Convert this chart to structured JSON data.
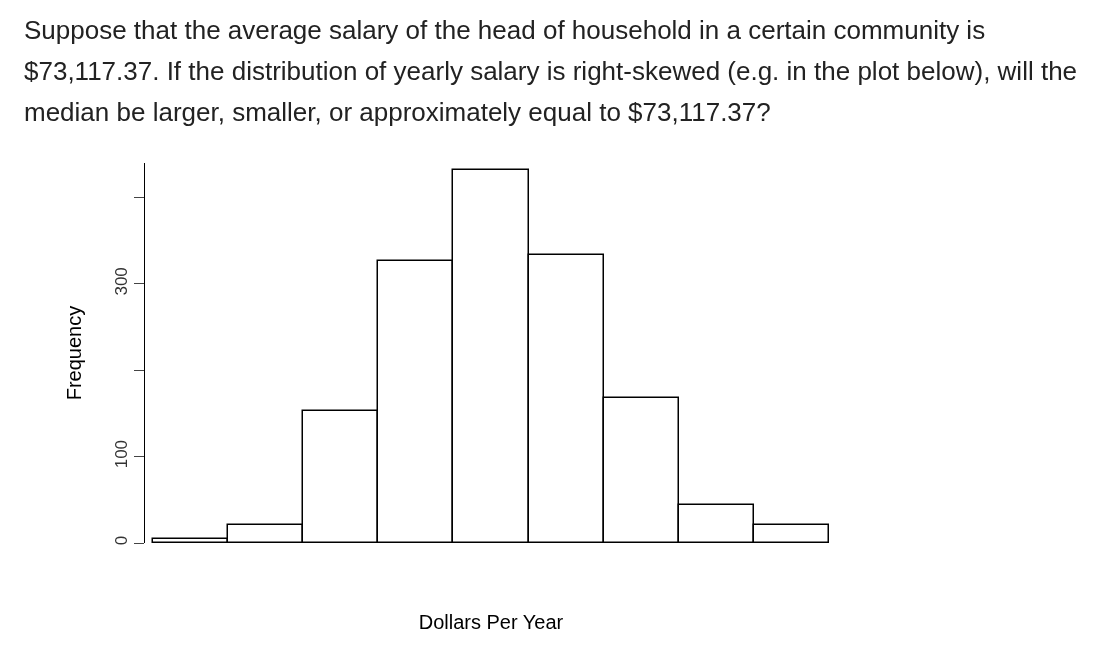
{
  "chart_data": {
    "type": "bar",
    "title": "Suppose that the average salary of the head of household in a certain community is $73,117.37. If the distribution of yearly salary is right-skewed (e.g. in the plot below), will the median be larger, smaller, or approximately equal to $73,117.37?",
    "xlabel": "Dollars Per Year",
    "ylabel": "Frequency",
    "categories": [
      null,
      null,
      null,
      null,
      null,
      null,
      null,
      null,
      null
    ],
    "values": [
      5,
      21,
      153,
      326,
      432,
      333,
      168,
      44,
      21
    ],
    "color": "#ffffff",
    "ylim": [
      0,
      440
    ],
    "yticks": [
      0,
      100,
      {
        "value": 200,
        "label": null
      },
      300,
      {
        "value": 400,
        "label": null
      }
    ],
    "tick_labels": "y",
    "grid": false,
    "legend": false
  }
}
